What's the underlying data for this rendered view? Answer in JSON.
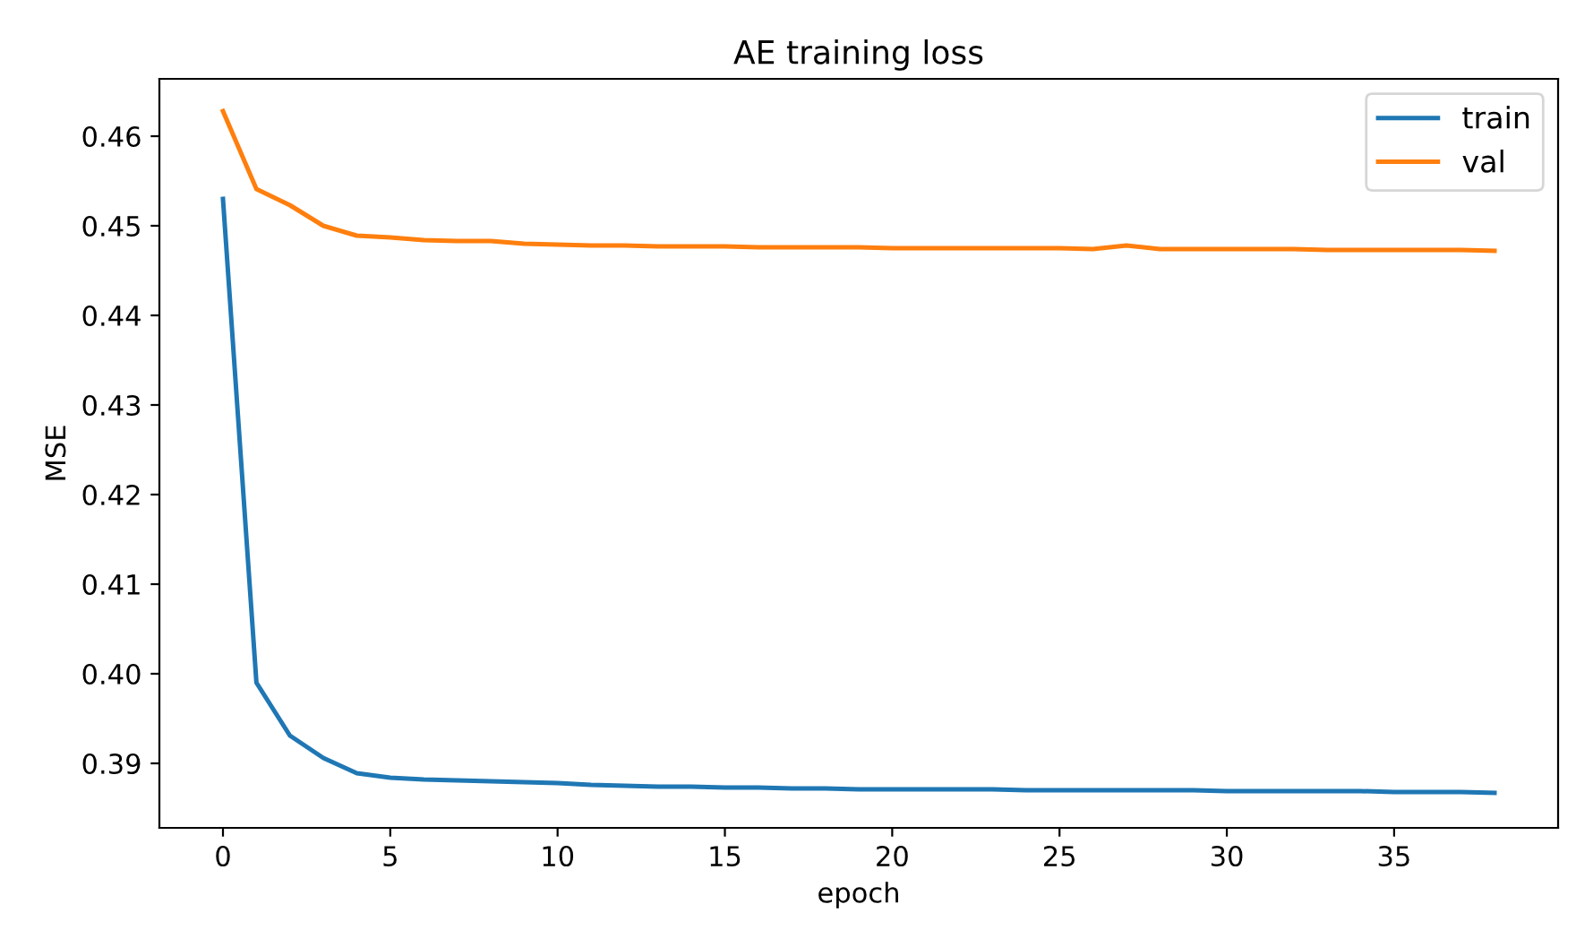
{
  "chart_data": {
    "type": "line",
    "title": "AE training loss",
    "xlabel": "epoch",
    "ylabel": "MSE",
    "x": [
      0,
      1,
      2,
      3,
      4,
      5,
      6,
      7,
      8,
      9,
      10,
      11,
      12,
      13,
      14,
      15,
      16,
      17,
      18,
      19,
      20,
      21,
      22,
      23,
      24,
      25,
      26,
      27,
      28,
      29,
      30,
      31,
      32,
      33,
      34,
      35,
      36,
      37,
      38
    ],
    "series": [
      {
        "name": "train",
        "color": "#1f77b4",
        "values": [
          0.453,
          0.399,
          0.3931,
          0.3906,
          0.3889,
          0.3884,
          0.3882,
          0.3881,
          0.388,
          0.3879,
          0.3878,
          0.3876,
          0.3875,
          0.3874,
          0.3874,
          0.3873,
          0.3873,
          0.3872,
          0.3872,
          0.3871,
          0.3871,
          0.3871,
          0.3871,
          0.3871,
          0.387,
          0.387,
          0.387,
          0.387,
          0.387,
          0.387,
          0.3869,
          0.3869,
          0.3869,
          0.3869,
          0.3869,
          0.3868,
          0.3868,
          0.3868,
          0.3867
        ]
      },
      {
        "name": "val",
        "color": "#ff7f0e",
        "values": [
          0.4628,
          0.4541,
          0.4523,
          0.45,
          0.4489,
          0.4487,
          0.4484,
          0.4483,
          0.4483,
          0.448,
          0.4479,
          0.4478,
          0.4478,
          0.4477,
          0.4477,
          0.4477,
          0.4476,
          0.4476,
          0.4476,
          0.4476,
          0.4475,
          0.4475,
          0.4475,
          0.4475,
          0.4475,
          0.4475,
          0.4474,
          0.4478,
          0.4474,
          0.4474,
          0.4474,
          0.4474,
          0.4474,
          0.4473,
          0.4473,
          0.4473,
          0.4473,
          0.4473,
          0.4472
        ]
      }
    ],
    "xlim": [
      -1.9,
      39.9
    ],
    "ylim": [
      0.3828,
      0.4664
    ],
    "xticks": [
      0,
      5,
      10,
      15,
      20,
      25,
      30,
      35
    ],
    "yticks": [
      {
        "value": 0.39,
        "label": "0.39"
      },
      {
        "value": 0.4,
        "label": "0.40"
      },
      {
        "value": 0.41,
        "label": "0.41"
      },
      {
        "value": 0.42,
        "label": "0.42"
      },
      {
        "value": 0.43,
        "label": "0.43"
      },
      {
        "value": 0.44,
        "label": "0.44"
      },
      {
        "value": 0.45,
        "label": "0.45"
      },
      {
        "value": 0.46,
        "label": "0.46"
      }
    ],
    "legend": "top right",
    "grid": false,
    "marker": "none",
    "line_style": "solid"
  }
}
